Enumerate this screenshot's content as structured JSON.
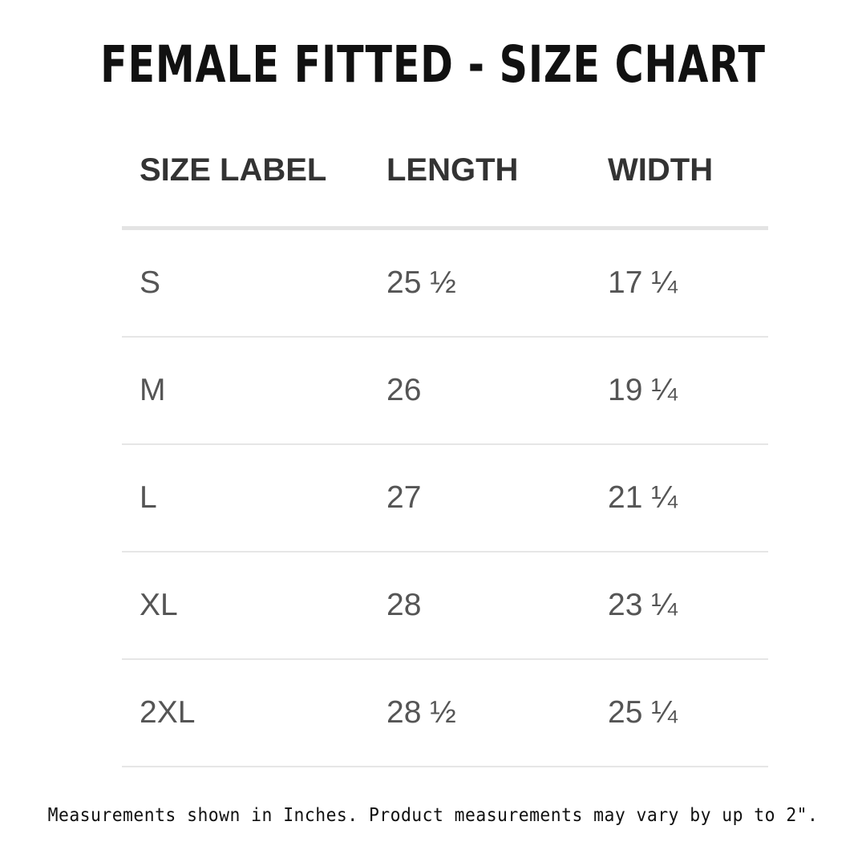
{
  "title": "FEMALE FITTED - SIZE CHART",
  "table": {
    "headers": [
      "SIZE LABEL",
      "LENGTH",
      "WIDTH"
    ],
    "rows": [
      [
        "S",
        "25 ½",
        "17 ¼"
      ],
      [
        "M",
        "26",
        "19 ¼"
      ],
      [
        "L",
        "27",
        "21 ¼"
      ],
      [
        "XL",
        "28",
        "23 ¼"
      ],
      [
        "2XL",
        "28 ½",
        "25 ¼"
      ]
    ]
  },
  "footnote": "Measurements shown in Inches. Product measurements may vary by up to 2\"."
}
